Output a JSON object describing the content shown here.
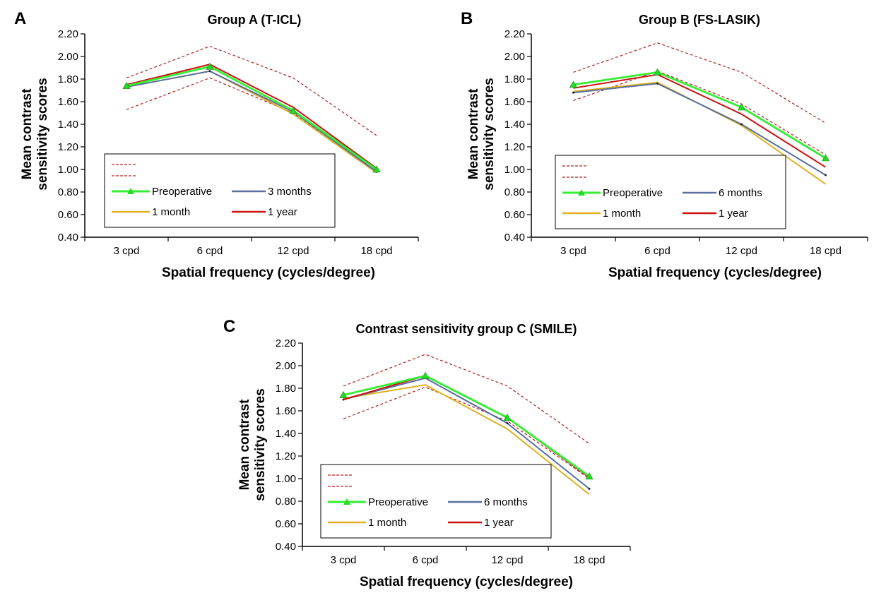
{
  "colors": {
    "preoperative": "#33ee33",
    "month1": "#e0b020",
    "months3": "#5a6f9f",
    "months6": "#5a6f9f",
    "year1": "#cc1111",
    "reference": "#b02020",
    "marker": "#22dd22"
  },
  "chart_data": [
    {
      "panel": "A",
      "type": "line",
      "title": "Group A (T-ICL)",
      "xlabel": "Spatial frequency (cycles/degree)",
      "ylabel": "Mean contrast sensitivity scores",
      "categories": [
        "3 cpd",
        "6 cpd",
        "12 cpd",
        "18 cpd"
      ],
      "ylim": [
        0.4,
        2.2
      ],
      "yticks": [
        "0.40",
        "0.60",
        "0.80",
        "1.00",
        "1.20",
        "1.40",
        "1.60",
        "1.80",
        "2.00",
        "2.20"
      ],
      "legend_position": "lower-left",
      "series": [
        {
          "name": "",
          "color_key": "reference",
          "dashed": true,
          "values": [
            1.81,
            2.09,
            1.81,
            1.3
          ]
        },
        {
          "name": "",
          "color_key": "reference",
          "dashed": true,
          "values": [
            1.53,
            1.81,
            1.5,
            0.98
          ]
        },
        {
          "name": "Preoperative",
          "color_key": "preoperative",
          "marker": "triangle",
          "values": [
            1.74,
            1.91,
            1.52,
            1.0
          ]
        },
        {
          "name": "1 month",
          "color_key": "month1",
          "values": [
            1.73,
            1.87,
            1.49,
            0.97
          ]
        },
        {
          "name": "3 months",
          "color_key": "months3",
          "values": [
            1.73,
            1.87,
            1.51,
            0.98
          ]
        },
        {
          "name": "1 year",
          "color_key": "year1",
          "values": [
            1.75,
            1.93,
            1.55,
            1.01
          ]
        }
      ]
    },
    {
      "panel": "B",
      "type": "line",
      "title": "Group B (FS-LASIK)",
      "xlabel": "Spatial frequency (cycles/degree)",
      "ylabel": "Mean contrast sensitivity scores",
      "categories": [
        "3 cpd",
        "6 cpd",
        "12 cpd",
        "18 cpd"
      ],
      "ylim": [
        0.4,
        2.2
      ],
      "yticks": [
        "0.40",
        "0.60",
        "0.80",
        "1.00",
        "1.20",
        "1.40",
        "1.60",
        "1.80",
        "2.00",
        "2.20"
      ],
      "legend_position": "lower-left",
      "series": [
        {
          "name": "",
          "color_key": "reference",
          "dashed": true,
          "values": [
            1.86,
            2.12,
            1.86,
            1.41
          ]
        },
        {
          "name": "",
          "color_key": "reference",
          "dashed": true,
          "values": [
            1.61,
            1.87,
            1.58,
            1.13
          ]
        },
        {
          "name": "Preoperative",
          "color_key": "preoperative",
          "marker": "triangle",
          "values": [
            1.75,
            1.86,
            1.55,
            1.1
          ]
        },
        {
          "name": "1 month",
          "color_key": "month1",
          "values": [
            1.69,
            1.77,
            1.39,
            0.87
          ]
        },
        {
          "name": "6 months",
          "color_key": "months6",
          "values": [
            1.68,
            1.76,
            1.4,
            0.95
          ]
        },
        {
          "name": "1 year",
          "color_key": "year1",
          "values": [
            1.72,
            1.84,
            1.49,
            1.02
          ]
        }
      ]
    },
    {
      "panel": "C",
      "type": "line",
      "title": "Contrast sensitivity group C (SMILE)",
      "xlabel": "Spatial frequency (cycles/degree)",
      "ylabel": "Mean contrast sensitivity scores",
      "categories": [
        "3 cpd",
        "6 cpd",
        "12 cpd",
        "18 cpd"
      ],
      "ylim": [
        0.4,
        2.2
      ],
      "yticks": [
        "0.40",
        "0.60",
        "0.80",
        "1.00",
        "1.20",
        "1.40",
        "1.60",
        "1.80",
        "2.00",
        "2.20"
      ],
      "legend_position": "lower-left",
      "series": [
        {
          "name": "",
          "color_key": "reference",
          "dashed": true,
          "values": [
            1.82,
            2.1,
            1.82,
            1.31
          ]
        },
        {
          "name": "",
          "color_key": "reference",
          "dashed": true,
          "values": [
            1.53,
            1.81,
            1.51,
            1.0
          ]
        },
        {
          "name": "Preoperative",
          "color_key": "preoperative",
          "marker": "triangle",
          "values": [
            1.74,
            1.91,
            1.54,
            1.02
          ]
        },
        {
          "name": "1 month",
          "color_key": "month1",
          "values": [
            1.71,
            1.83,
            1.44,
            0.86
          ]
        },
        {
          "name": "6 months",
          "color_key": "months6",
          "values": [
            1.7,
            1.89,
            1.49,
            0.91
          ]
        },
        {
          "name": "1 year",
          "color_key": "year1",
          "values": [
            1.7,
            1.91,
            1.54,
            1.01
          ]
        }
      ]
    }
  ]
}
